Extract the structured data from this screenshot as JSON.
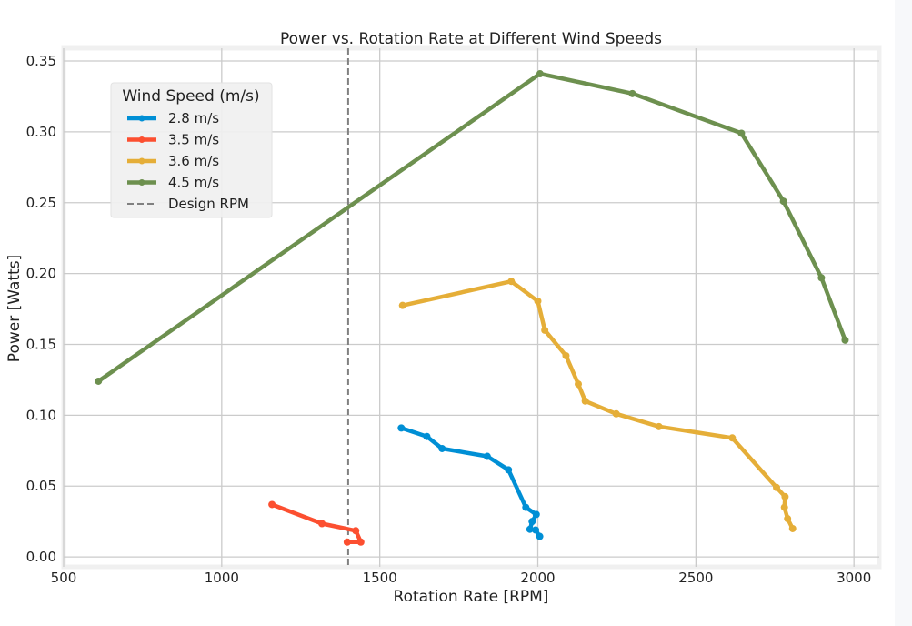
{
  "chart_data": {
    "type": "line",
    "title": "Power vs. Rotation Rate at Different Wind Speeds",
    "xlabel": "Rotation Rate [RPM]",
    "ylabel": "Power [Watts]",
    "xlim": [
      500,
      3080
    ],
    "ylim": [
      -0.007,
      0.359
    ],
    "xticks": [
      500,
      1000,
      1500,
      2000,
      2500,
      3000
    ],
    "xtick_labels": [
      "500",
      "1000",
      "1500",
      "2000",
      "2500",
      "3000"
    ],
    "yticks": [
      0.0,
      0.05,
      0.1,
      0.15,
      0.2,
      0.25,
      0.3,
      0.35
    ],
    "ytick_labels": [
      "0.00",
      "0.05",
      "0.10",
      "0.15",
      "0.20",
      "0.25",
      "0.30",
      "0.35"
    ],
    "grid": true,
    "legend": {
      "title": "Wind Speed (m/s)",
      "placement": "upper-left",
      "entries": [
        "2.8 m/s",
        "3.5 m/s",
        "3.6 m/s",
        "4.5 m/s",
        "Design RPM"
      ]
    },
    "series": [
      {
        "name": "2.8 m/s",
        "color": "#008fd5",
        "x": [
          1568,
          1649,
          1697,
          1840,
          1907,
          1962,
          1995,
          1982,
          1975,
          1993,
          2006
        ],
        "y": [
          0.091,
          0.085,
          0.0765,
          0.071,
          0.0615,
          0.035,
          0.03,
          0.025,
          0.0195,
          0.019,
          0.0145
        ]
      },
      {
        "name": "3.5 m/s",
        "color": "#fc4f30",
        "x": [
          1159,
          1317,
          1424,
          1440,
          1397
        ],
        "y": [
          0.037,
          0.0235,
          0.0185,
          0.0105,
          0.0105
        ]
      },
      {
        "name": "3.6 m/s",
        "color": "#e5ae38",
        "x": [
          1572,
          1916,
          2000,
          2022,
          2089,
          2128,
          2150,
          2248,
          2383,
          2615,
          2755,
          2782,
          2780,
          2790,
          2806
        ],
        "y": [
          0.1775,
          0.1945,
          0.1805,
          0.16,
          0.142,
          0.122,
          0.11,
          0.101,
          0.092,
          0.084,
          0.049,
          0.0425,
          0.035,
          0.027,
          0.02
        ]
      },
      {
        "name": "4.5 m/s",
        "color": "#6d904f",
        "x": [
          610,
          2007,
          2299,
          2644,
          2777,
          2897,
          2972
        ],
        "y": [
          0.124,
          0.341,
          0.327,
          0.299,
          0.251,
          0.197,
          0.153
        ]
      }
    ],
    "reference_lines": [
      {
        "name": "Design RPM",
        "orientation": "vertical",
        "x": 1400,
        "color": "#808080",
        "style": "dashed"
      }
    ]
  }
}
